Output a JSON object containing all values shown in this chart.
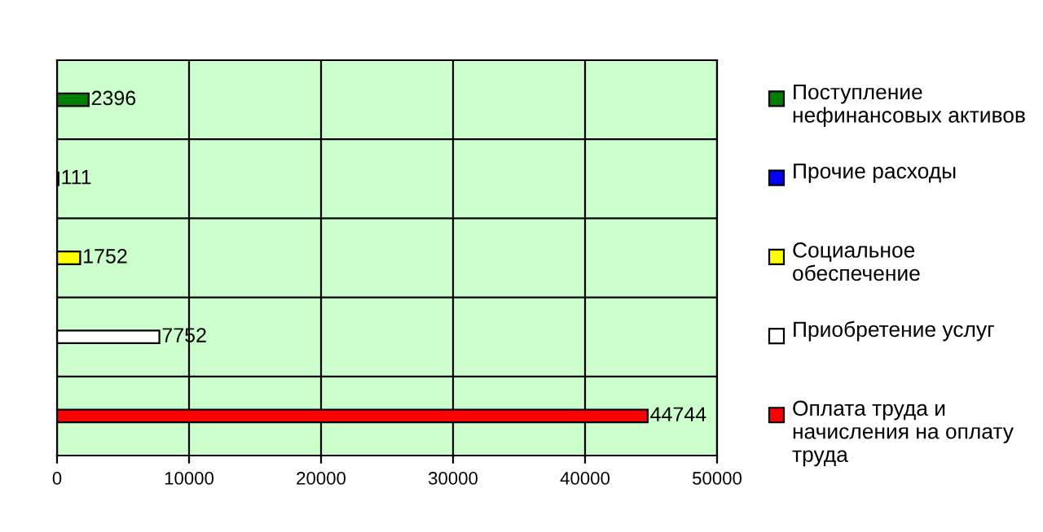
{
  "chart_data": {
    "type": "bar",
    "orientation": "horizontal",
    "categories": [
      null,
      null,
      null,
      null,
      null
    ],
    "series": [
      {
        "name": "Поступление нефинансовых активов",
        "color": "#008000",
        "values": [
          2396,
          null,
          null,
          null,
          null
        ]
      },
      {
        "name": "Прочие расходы",
        "color": "#0000ff",
        "values": [
          null,
          111,
          null,
          null,
          null
        ]
      },
      {
        "name": "Социальное обеспечение",
        "color": "#ffff00",
        "values": [
          null,
          null,
          1752,
          null,
          null
        ]
      },
      {
        "name": "Приобретение услуг",
        "color": "#ffffff",
        "values": [
          null,
          null,
          null,
          7752,
          null
        ]
      },
      {
        "name": "Оплата труда и начисления на оплату труда",
        "color": "#ff0000",
        "values": [
          null,
          null,
          null,
          null,
          44744
        ]
      }
    ],
    "xlim": [
      0,
      50000
    ],
    "xticks": [
      0,
      10000,
      20000,
      30000,
      40000,
      50000
    ],
    "grid": true,
    "legend": "right",
    "data_labels": true
  }
}
